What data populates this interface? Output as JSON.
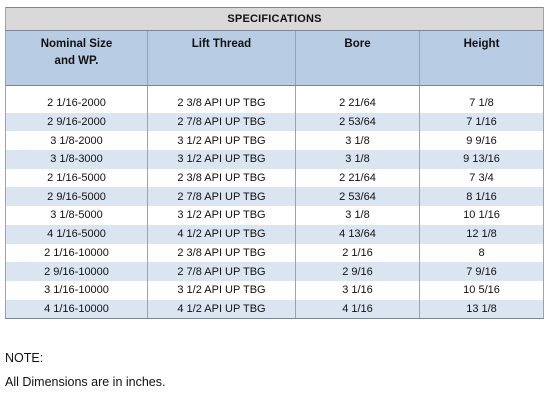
{
  "title": "SPECIFICATIONS",
  "headers": {
    "nominal_line1": "Nominal Size",
    "nominal_line2": "and WP.",
    "lift_thread": "Lift Thread",
    "bore": "Bore",
    "height": "Height"
  },
  "rows": [
    [
      "2 1/16-2000",
      "2 3/8 API UP TBG",
      "2 21/64",
      "7 1/8"
    ],
    [
      "2 9/16-2000",
      "2 7/8 API UP TBG",
      "2 53/64",
      "7 1/16"
    ],
    [
      "3 1/8-2000",
      "3 1/2 API UP TBG",
      "3 1/8",
      "9 9/16"
    ],
    [
      "3 1/8-3000",
      "3 1/2 API UP TBG",
      "3 1/8",
      "9 13/16"
    ],
    [
      "2 1/16-5000",
      "2 3/8 API UP TBG",
      "2 21/64",
      "7 3/4"
    ],
    [
      "2 9/16-5000",
      "2 7/8 API UP TBG",
      "2 53/64",
      "8 1/16"
    ],
    [
      "3 1/8-5000",
      "3 1/2 API UP TBG",
      "3 1/8",
      "10 1/16"
    ],
    [
      "4 1/16-5000",
      "4 1/2 API UP TBG",
      "4 13/64",
      "12 1/8"
    ],
    [
      "2 1/16-10000",
      "2 3/8 API UP TBG",
      "2 1/16",
      "8"
    ],
    [
      "2 9/16-10000",
      "2 7/8 API UP TBG",
      "2 9/16",
      "7 9/16"
    ],
    [
      "3 1/16-10000",
      "3 1/2 API UP TBG",
      "3 1/16",
      "10 5/16"
    ],
    [
      "4 1/16-10000",
      "4 1/2 API UP TBG",
      "4 1/16",
      "13 1/8"
    ]
  ],
  "note": {
    "title": "NOTE:",
    "body": "All Dimensions are in inches."
  },
  "colors": {
    "header_fill": "#b8cce4",
    "title_fill": "#d9d9d9",
    "stripe_fill": "#dbe5f1"
  }
}
